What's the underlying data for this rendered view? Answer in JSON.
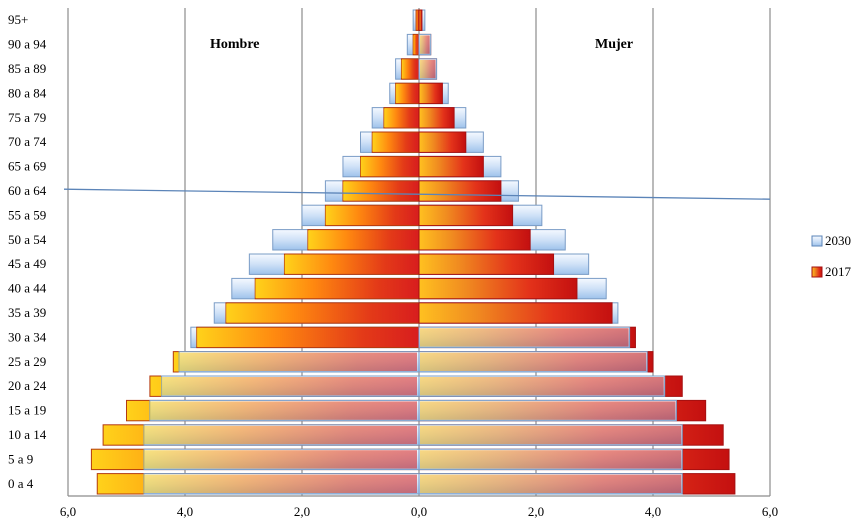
{
  "chart_data": {
    "type": "bar",
    "orientation": "horizontal",
    "layout": "population-pyramid",
    "panel_labels": {
      "left": "Hombre",
      "right": "Mujer"
    },
    "categories": [
      "95+",
      "90 a 94",
      "85 a 89",
      "80 a 84",
      "75 a 79",
      "70 a 74",
      "65 a 69",
      "60 a 64",
      "55 a 59",
      "50 a 54",
      "45 a 49",
      "40 a 44",
      "35 a 39",
      "30 a 34",
      "25 a 29",
      "20 a 24",
      "15 a 19",
      "10 a 14",
      "5 a 9",
      "0 a 4"
    ],
    "xticks": [
      "6,0",
      "4,0",
      "2,0",
      "0,0",
      "2,0",
      "4,0",
      "6,0"
    ],
    "xlim": [
      -6,
      6
    ],
    "grid": true,
    "legend_position": "right",
    "series": [
      {
        "name": "2030",
        "color": "#bcd6f2",
        "hombre": [
          0.1,
          0.2,
          0.4,
          0.5,
          0.8,
          1.0,
          1.3,
          1.6,
          2.0,
          2.5,
          2.9,
          3.2,
          3.5,
          3.9,
          4.1,
          4.4,
          4.6,
          4.7,
          4.7,
          4.7
        ],
        "mujer": [
          0.1,
          0.2,
          0.3,
          0.5,
          0.8,
          1.1,
          1.4,
          1.7,
          2.1,
          2.5,
          2.9,
          3.2,
          3.4,
          3.6,
          3.9,
          4.2,
          4.4,
          4.5,
          4.5,
          4.5
        ]
      },
      {
        "name": "2017",
        "color": "#e84a1a",
        "hombre": [
          0.05,
          0.1,
          0.3,
          0.4,
          0.6,
          0.8,
          1.0,
          1.3,
          1.6,
          1.9,
          2.3,
          2.8,
          3.3,
          3.8,
          4.2,
          4.6,
          5.0,
          5.4,
          5.6,
          5.5
        ],
        "mujer": [
          0.05,
          0.2,
          0.3,
          0.4,
          0.6,
          0.8,
          1.1,
          1.4,
          1.6,
          1.9,
          2.3,
          2.7,
          3.3,
          3.7,
          4.0,
          4.5,
          4.9,
          5.2,
          5.3,
          5.4
        ]
      }
    ],
    "annotations": [
      "horizontal reference line near 55 a 59"
    ]
  }
}
